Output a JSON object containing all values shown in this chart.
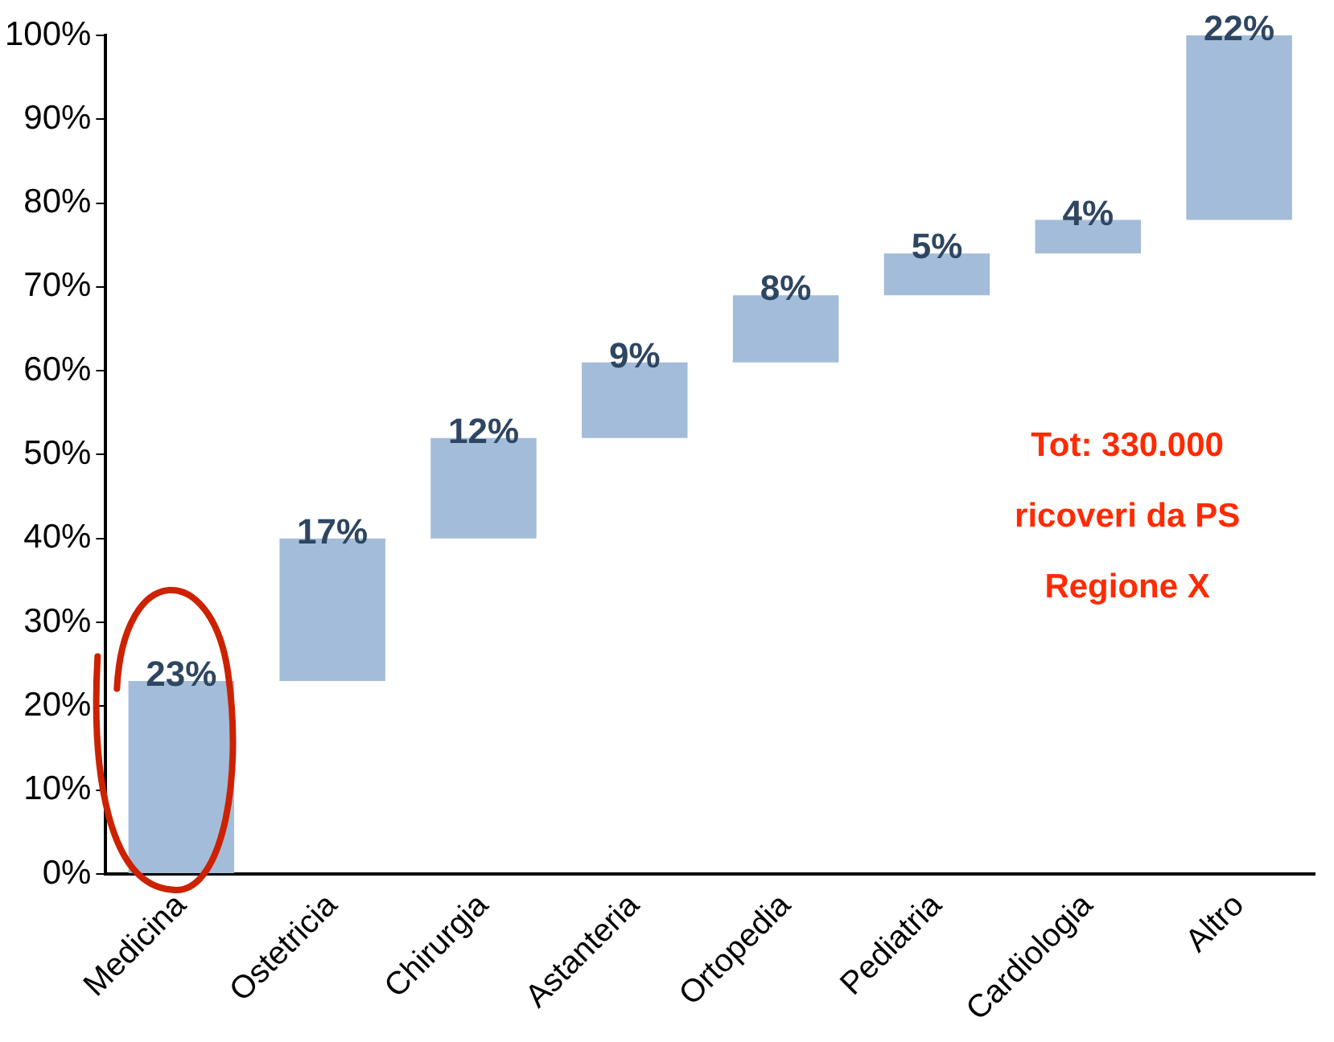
{
  "chart_data": {
    "type": "bar",
    "categories": [
      "Medicina",
      "Ostetricia",
      "Chirurgia",
      "Astanteria",
      "Ortopedia",
      "Pediatria",
      "Cardiologia",
      "Altro"
    ],
    "values": [
      23,
      17,
      12,
      9,
      8,
      5,
      4,
      22
    ],
    "base": [
      0,
      23,
      40,
      52,
      61,
      69,
      74,
      78
    ],
    "value_labels": [
      "23%",
      "17%",
      "12%",
      "9%",
      "8%",
      "5%",
      "4%",
      "22%"
    ],
    "color": "#a3bcd9",
    "ylim": [
      0,
      100
    ],
    "yticks": [
      {
        "value": 0,
        "label": "0%"
      },
      {
        "value": 10,
        "label": "10%"
      },
      {
        "value": 20,
        "label": "20%"
      },
      {
        "value": 30,
        "label": "30%"
      },
      {
        "value": 40,
        "label": "40%"
      },
      {
        "value": 50,
        "label": "50%"
      },
      {
        "value": 60,
        "label": "60%"
      },
      {
        "value": 70,
        "label": "70%"
      },
      {
        "value": 80,
        "label": "80%"
      },
      {
        "value": 90,
        "label": "90%"
      },
      {
        "value": 100,
        "label": "100%"
      }
    ],
    "annotations": [
      "Tot: 330.000",
      "ricoveri da PS",
      "Regione X"
    ],
    "grid": false,
    "legend": false
  }
}
